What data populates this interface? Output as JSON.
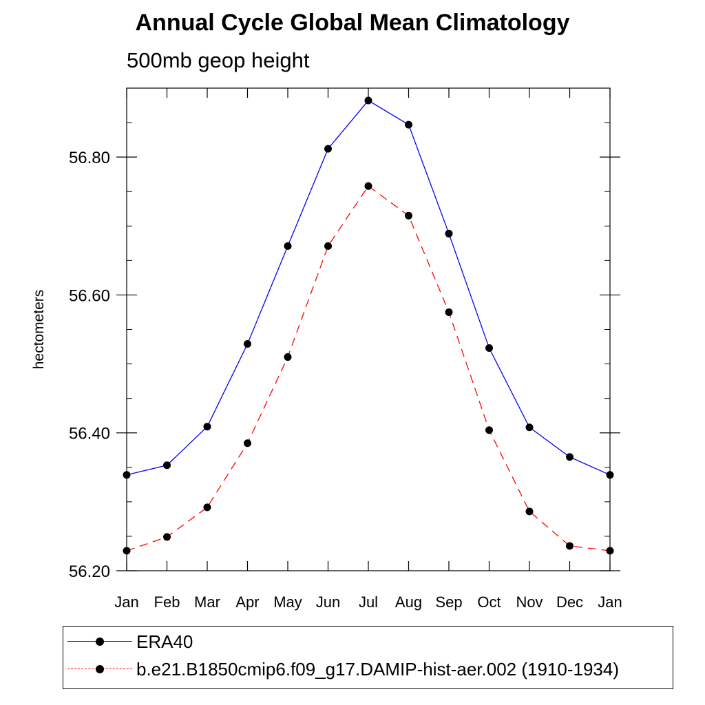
{
  "chart_data": {
    "type": "line",
    "title": "Annual Cycle Global Mean Climatology",
    "subtitle": "500mb geop height",
    "ylabel": "hectometers",
    "xlabel": "",
    "ylim": [
      56.2,
      56.9
    ],
    "yticks": [
      "56.20",
      "56.40",
      "56.60",
      "56.80"
    ],
    "ytick_values": [
      56.2,
      56.4,
      56.6,
      56.8
    ],
    "categories": [
      "Jan",
      "Feb",
      "Mar",
      "Apr",
      "May",
      "Jun",
      "Jul",
      "Aug",
      "Sep",
      "Oct",
      "Nov",
      "Dec",
      "Jan"
    ],
    "series": [
      {
        "name": "ERA40",
        "color": "#0000ff",
        "dash": "solid",
        "values": [
          56.339,
          56.353,
          56.409,
          56.529,
          56.671,
          56.812,
          56.882,
          56.847,
          56.689,
          56.523,
          56.408,
          56.365,
          56.339
        ]
      },
      {
        "name": "b.e21.B1850cmip6.f09_g17.DAMIP-hist-aer.002 (1910-1934)",
        "color": "#ff0000",
        "dash": "dashed",
        "values": [
          56.229,
          56.249,
          56.292,
          56.385,
          56.51,
          56.671,
          56.758,
          56.715,
          56.575,
          56.404,
          56.286,
          56.236,
          56.229
        ]
      }
    ],
    "marker": "filled-circle",
    "marker_color": "#000000",
    "legend_position": "bottom"
  }
}
